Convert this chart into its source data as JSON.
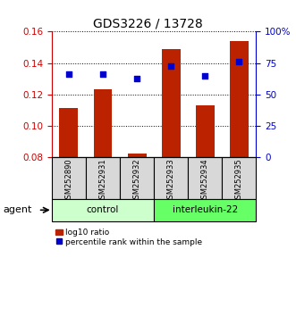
{
  "title": "GDS3226 / 13728",
  "samples": [
    "GSM252890",
    "GSM252931",
    "GSM252932",
    "GSM252933",
    "GSM252934",
    "GSM252935"
  ],
  "bar_values": [
    0.111,
    0.123,
    0.082,
    0.149,
    0.113,
    0.154
  ],
  "dot_values": [
    0.133,
    0.133,
    0.13,
    0.138,
    0.132,
    0.141
  ],
  "bar_bottom": 0.08,
  "ylim_left": [
    0.08,
    0.16
  ],
  "ylim_right": [
    0,
    100
  ],
  "yticks_left": [
    0.08,
    0.1,
    0.12,
    0.14,
    0.16
  ],
  "yticks_right": [
    0,
    25,
    50,
    75,
    100
  ],
  "bar_color": "#bb2200",
  "dot_color": "#0000cc",
  "groups": [
    {
      "label": "control",
      "indices": [
        0,
        1,
        2
      ],
      "color": "#ccffcc"
    },
    {
      "label": "interleukin-22",
      "indices": [
        3,
        4,
        5
      ],
      "color": "#66ff66"
    }
  ],
  "group_row_label": "agent",
  "legend_bar_label": "log10 ratio",
  "legend_dot_label": "percentile rank within the sample",
  "title_fontsize": 10,
  "tick_fontsize": 7.5,
  "right_tick_color": "#0000cc",
  "left_tick_color": "#cc0000",
  "sample_label_fontsize": 6,
  "group_label_fontsize": 7.5,
  "legend_fontsize": 6.5,
  "agent_fontsize": 8
}
